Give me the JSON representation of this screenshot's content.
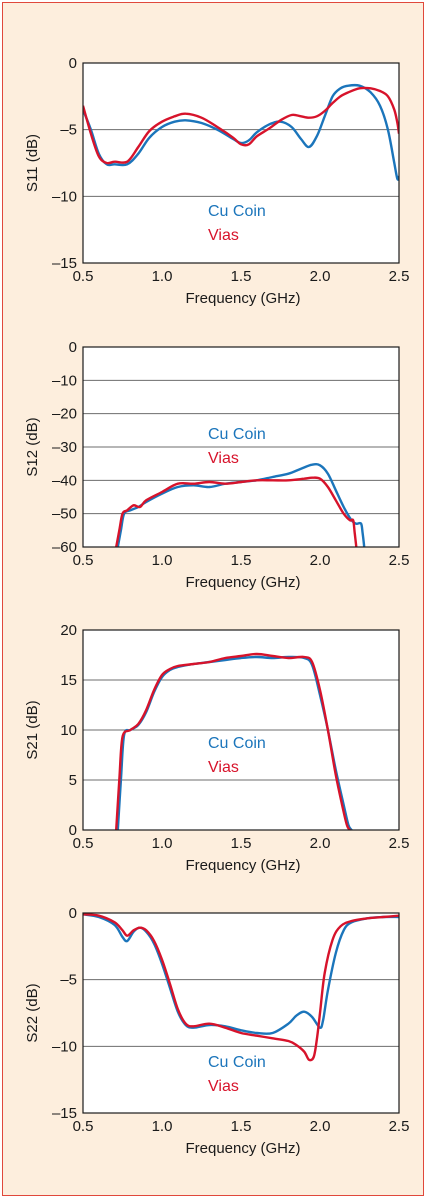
{
  "colors": {
    "cu_coin": "#1b75bb",
    "vias": "#d7132b",
    "background": "#fdeedd",
    "border": "#e0483b",
    "gridline": "#6d6d6d"
  },
  "chart_data": [
    {
      "type": "line",
      "xlabel": "Frequency (GHz)",
      "ylabel": "S11 (dB)",
      "xlim": [
        0.5,
        2.5
      ],
      "ylim": [
        -15,
        0
      ],
      "xticks": [
        "0.5",
        "1.0",
        "1.5",
        "2.0",
        "2.5"
      ],
      "yticks": [
        "0",
        "–5",
        "–10",
        "–15"
      ],
      "ytick_values": [
        0,
        -5,
        -10,
        -15
      ],
      "grid": "horizontal",
      "legend": "center",
      "series": [
        {
          "name": "Cu Coin",
          "color": "#1b75bb",
          "x": [
            0.5,
            0.55,
            0.6,
            0.65,
            0.7,
            0.78,
            0.85,
            0.92,
            1.0,
            1.08,
            1.15,
            1.25,
            1.35,
            1.45,
            1.5,
            1.55,
            1.6,
            1.68,
            1.75,
            1.82,
            1.88,
            1.93,
            1.98,
            2.03,
            2.08,
            2.13,
            2.18,
            2.25,
            2.32,
            2.38,
            2.43,
            2.47,
            2.49,
            2.5
          ],
          "y": [
            -3.5,
            -5.0,
            -6.8,
            -7.6,
            -7.6,
            -7.6,
            -6.8,
            -5.6,
            -4.8,
            -4.4,
            -4.3,
            -4.5,
            -5.0,
            -5.7,
            -6.0,
            -5.8,
            -5.2,
            -4.6,
            -4.4,
            -4.8,
            -5.7,
            -6.3,
            -5.5,
            -4.0,
            -2.5,
            -1.9,
            -1.7,
            -1.7,
            -2.2,
            -3.2,
            -5.0,
            -7.5,
            -8.7,
            -8.5
          ]
        },
        {
          "name": "Vias",
          "color": "#d7132b",
          "x": [
            0.5,
            0.55,
            0.6,
            0.65,
            0.7,
            0.78,
            0.85,
            0.92,
            1.0,
            1.08,
            1.15,
            1.25,
            1.35,
            1.45,
            1.5,
            1.55,
            1.6,
            1.68,
            1.75,
            1.82,
            1.88,
            1.93,
            1.98,
            2.03,
            2.08,
            2.13,
            2.18,
            2.25,
            2.32,
            2.38,
            2.43,
            2.47,
            2.49,
            2.5
          ],
          "y": [
            -3.2,
            -5.3,
            -7.0,
            -7.5,
            -7.4,
            -7.4,
            -6.3,
            -5.1,
            -4.4,
            -4.0,
            -3.8,
            -4.1,
            -4.8,
            -5.6,
            -6.1,
            -6.1,
            -5.5,
            -4.9,
            -4.3,
            -3.9,
            -4.0,
            -4.1,
            -4.0,
            -3.6,
            -3.0,
            -2.5,
            -2.2,
            -1.9,
            -1.9,
            -2.1,
            -2.5,
            -3.5,
            -4.5,
            -5.3
          ]
        }
      ]
    },
    {
      "type": "line",
      "xlabel": "Frequency (GHz)",
      "ylabel": "S12 (dB)",
      "xlim": [
        0.5,
        2.5
      ],
      "ylim": [
        -60,
        0
      ],
      "xticks": [
        "0.5",
        "1.0",
        "1.5",
        "2.0",
        "2.5"
      ],
      "yticks": [
        "0",
        "–10",
        "–20",
        "–30",
        "–40",
        "–50",
        "–60"
      ],
      "ytick_values": [
        0,
        -10,
        -20,
        -30,
        -40,
        -50,
        -60
      ],
      "grid": "horizontal",
      "legend": "center",
      "series": [
        {
          "name": "Cu Coin",
          "color": "#1b75bb",
          "x": [
            0.72,
            0.74,
            0.76,
            0.8,
            0.85,
            0.9,
            1.0,
            1.1,
            1.2,
            1.3,
            1.4,
            1.5,
            1.6,
            1.7,
            1.8,
            1.88,
            1.95,
            2.0,
            2.05,
            2.1,
            2.15,
            2.2,
            2.23,
            2.26,
            2.27,
            2.28
          ],
          "y": [
            -60,
            -55,
            -50,
            -49,
            -48,
            -46.5,
            -44,
            -42,
            -41.5,
            -42,
            -41,
            -40.5,
            -40,
            -39,
            -38,
            -36.5,
            -35.3,
            -35.5,
            -38,
            -43,
            -48,
            -52,
            -53,
            -53,
            -56,
            -60
          ]
        },
        {
          "name": "Vias",
          "color": "#d7132b",
          "x": [
            0.71,
            0.73,
            0.75,
            0.78,
            0.82,
            0.86,
            0.9,
            1.0,
            1.1,
            1.2,
            1.3,
            1.4,
            1.5,
            1.6,
            1.7,
            1.8,
            1.9,
            1.95,
            2.0,
            2.05,
            2.1,
            2.15,
            2.19,
            2.21,
            2.22,
            2.23
          ],
          "y": [
            -60,
            -55,
            -50,
            -49,
            -47.5,
            -48,
            -46,
            -43.5,
            -41,
            -41,
            -40.5,
            -41,
            -40.5,
            -40,
            -40,
            -40,
            -39.5,
            -39.2,
            -39.5,
            -42,
            -46,
            -50,
            -52,
            -52,
            -56,
            -60
          ]
        }
      ]
    },
    {
      "type": "line",
      "xlabel": "Frequency (GHz)",
      "ylabel": "S21 (dB)",
      "xlim": [
        0.5,
        2.5
      ],
      "ylim": [
        0,
        20
      ],
      "xticks": [
        "0.5",
        "1.0",
        "1.5",
        "2.0",
        "2.5"
      ],
      "yticks": [
        "20",
        "15",
        "10",
        "5",
        "0"
      ],
      "ytick_values": [
        20,
        15,
        10,
        5,
        0
      ],
      "grid": "horizontal",
      "legend": "center",
      "series": [
        {
          "name": "Cu Coin",
          "color": "#1b75bb",
          "x": [
            0.72,
            0.74,
            0.76,
            0.8,
            0.85,
            0.9,
            0.95,
            1.0,
            1.05,
            1.1,
            1.2,
            1.3,
            1.4,
            1.5,
            1.6,
            1.7,
            1.8,
            1.9,
            1.95,
            2.0,
            2.05,
            2.1,
            2.15,
            2.18,
            2.2
          ],
          "y": [
            0,
            5,
            9.5,
            10,
            10.5,
            11.8,
            13.8,
            15.3,
            16.0,
            16.3,
            16.6,
            16.8,
            17.0,
            17.2,
            17.3,
            17.2,
            17.3,
            17.2,
            16.5,
            13.5,
            10,
            6,
            2.5,
            0.5,
            0
          ]
        },
        {
          "name": "Vias",
          "color": "#d7132b",
          "x": [
            0.71,
            0.73,
            0.75,
            0.8,
            0.85,
            0.9,
            0.95,
            1.0,
            1.05,
            1.1,
            1.2,
            1.3,
            1.4,
            1.5,
            1.6,
            1.7,
            1.8,
            1.9,
            1.95,
            2.0,
            2.05,
            2.1,
            2.14,
            2.17,
            2.19
          ],
          "y": [
            0,
            5,
            9.3,
            10,
            10.6,
            12,
            14,
            15.5,
            16.1,
            16.4,
            16.6,
            16.8,
            17.2,
            17.4,
            17.6,
            17.4,
            17.2,
            17.3,
            16.8,
            14,
            10,
            5.5,
            2.5,
            0.5,
            0
          ]
        }
      ]
    },
    {
      "type": "line",
      "xlabel": "Frequency (GHz)",
      "ylabel": "S22 (dB)",
      "xlim": [
        0.5,
        2.5
      ],
      "ylim": [
        -15,
        0
      ],
      "xticks": [
        "0.5",
        "1.0",
        "1.5",
        "2.0",
        "2.5"
      ],
      "yticks": [
        "0",
        "–5",
        "–10",
        "–15"
      ],
      "ytick_values": [
        0,
        -5,
        -10,
        -15
      ],
      "grid": "horizontal",
      "legend": "center",
      "series": [
        {
          "name": "Cu Coin",
          "color": "#1b75bb",
          "x": [
            0.5,
            0.6,
            0.7,
            0.75,
            0.78,
            0.82,
            0.86,
            0.9,
            0.95,
            1.0,
            1.05,
            1.1,
            1.15,
            1.2,
            1.3,
            1.4,
            1.5,
            1.6,
            1.7,
            1.8,
            1.85,
            1.9,
            1.95,
            2.0,
            2.02,
            2.05,
            2.1,
            2.15,
            2.2,
            2.3,
            2.4,
            2.5
          ],
          "y": [
            -0.1,
            -0.3,
            -0.9,
            -1.8,
            -2.1,
            -1.4,
            -1.1,
            -1.4,
            -2.3,
            -3.8,
            -5.6,
            -7.4,
            -8.4,
            -8.6,
            -8.4,
            -8.5,
            -8.8,
            -9.0,
            -9.0,
            -8.3,
            -7.7,
            -7.4,
            -7.8,
            -8.6,
            -8.0,
            -5.8,
            -3.0,
            -1.3,
            -0.7,
            -0.4,
            -0.3,
            -0.3
          ]
        },
        {
          "name": "Vias",
          "color": "#d7132b",
          "x": [
            0.5,
            0.6,
            0.7,
            0.75,
            0.78,
            0.82,
            0.86,
            0.9,
            0.95,
            1.0,
            1.05,
            1.1,
            1.15,
            1.2,
            1.3,
            1.4,
            1.5,
            1.6,
            1.7,
            1.8,
            1.85,
            1.9,
            1.93,
            1.96,
            1.98,
            2.0,
            2.03,
            2.08,
            2.13,
            2.2,
            2.3,
            2.4,
            2.5
          ],
          "y": [
            -0.1,
            -0.2,
            -0.7,
            -1.3,
            -1.7,
            -1.3,
            -1.1,
            -1.3,
            -2.1,
            -3.5,
            -5.3,
            -7.2,
            -8.3,
            -8.5,
            -8.3,
            -8.6,
            -9.0,
            -9.2,
            -9.4,
            -9.6,
            -9.9,
            -10.4,
            -11.0,
            -10.8,
            -9.5,
            -7.5,
            -4.5,
            -2.0,
            -1.0,
            -0.6,
            -0.4,
            -0.3,
            -0.2
          ]
        }
      ]
    }
  ]
}
